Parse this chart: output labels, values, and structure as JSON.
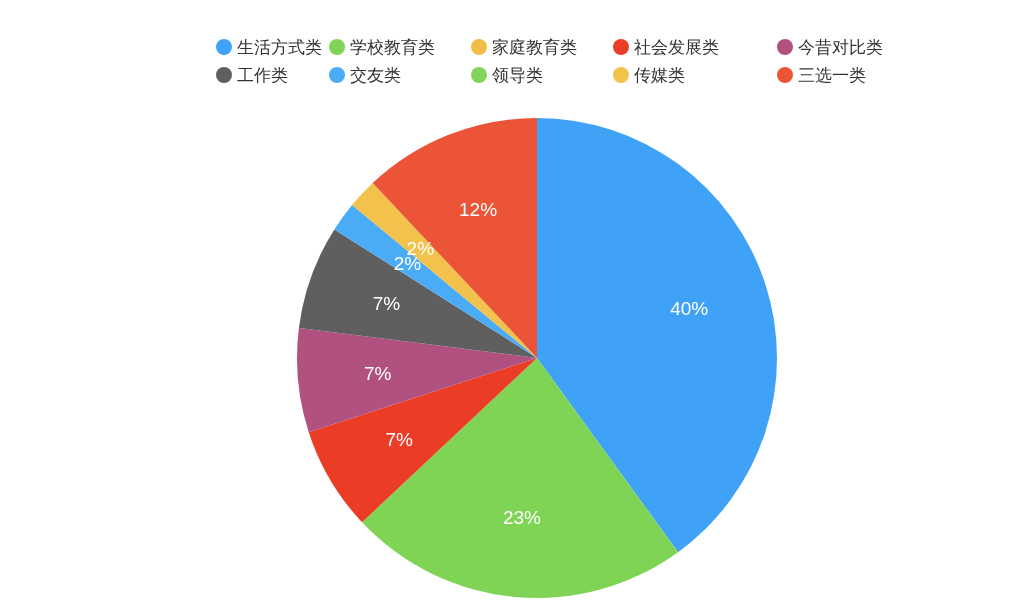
{
  "chart_data": {
    "type": "pie",
    "categories": [
      "生活方式类",
      "学校教育类",
      "家庭教育类",
      "社会发展类",
      "今昔对比类",
      "工作类",
      "交友类",
      "领导类",
      "传媒类",
      "三选一类"
    ],
    "values": [
      40,
      23,
      0,
      7,
      7,
      7,
      2,
      0,
      2,
      12
    ],
    "colors": [
      "#40a2f6",
      "#80d455",
      "#f2bd44",
      "#eb3d25",
      "#b0517f",
      "#5f5f5f",
      "#4aacf6",
      "#82d45a",
      "#f2c24d",
      "#eb5436"
    ],
    "value_labels": [
      "40%",
      "23%",
      null,
      "7%",
      "7%",
      "7%",
      "2%",
      null,
      "2%",
      "12%"
    ],
    "legend": "top"
  }
}
